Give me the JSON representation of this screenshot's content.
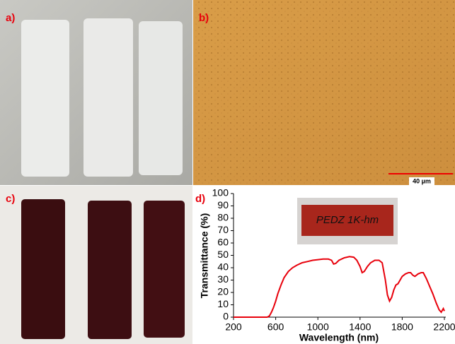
{
  "panels": {
    "a": "a)",
    "b": "b)",
    "c": "c)",
    "d": "d)"
  },
  "scale_bar": "40 µm",
  "inset_label": "PEDZ 1K-hm",
  "chart_data": {
    "type": "line",
    "x_label": "Wavelength (nm)",
    "y_label": "Transmittance (%)",
    "color": "#e8000b",
    "x": [
      200,
      300,
      400,
      500,
      520,
      540,
      560,
      580,
      600,
      620,
      650,
      680,
      720,
      760,
      800,
      850,
      900,
      950,
      1000,
      1050,
      1100,
      1130,
      1150,
      1170,
      1200,
      1250,
      1300,
      1340,
      1370,
      1400,
      1420,
      1440,
      1470,
      1500,
      1540,
      1580,
      1610,
      1640,
      1660,
      1680,
      1700,
      1720,
      1740,
      1760,
      1780,
      1800,
      1830,
      1860,
      1880,
      1900,
      1920,
      1950,
      1980,
      2000,
      2030,
      2060,
      2090,
      2120,
      2150,
      2170,
      2190,
      2200
    ],
    "values": [
      0,
      0,
      0,
      0,
      0,
      1,
      4,
      8,
      13,
      19,
      26,
      32,
      37,
      40,
      42,
      44,
      45,
      46,
      46.5,
      47,
      47,
      46,
      43,
      43.5,
      46,
      48,
      49,
      48.5,
      46,
      41,
      36,
      37,
      41,
      44,
      46,
      46,
      44,
      30,
      18,
      13,
      16,
      22,
      26,
      27,
      30,
      33,
      35,
      36,
      36,
      34,
      33,
      35,
      36,
      36,
      31,
      25,
      19,
      12,
      6,
      4,
      7,
      5
    ],
    "xlim": [
      200,
      2200
    ],
    "ylim": [
      0,
      100
    ],
    "xticks": [
      200,
      600,
      1000,
      1400,
      1800,
      2200
    ],
    "yticks": [
      0,
      10,
      20,
      30,
      40,
      50,
      60,
      70,
      80,
      90,
      100
    ]
  }
}
